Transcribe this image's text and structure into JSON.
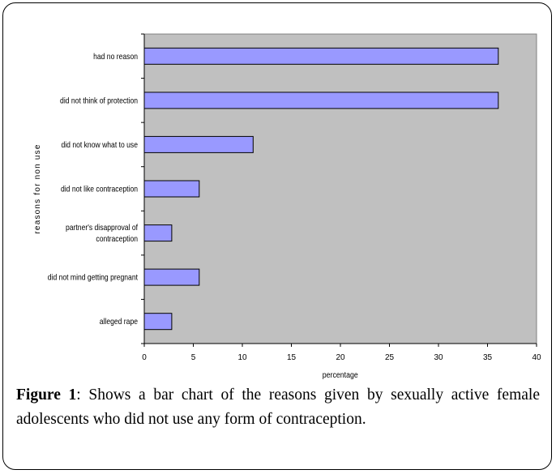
{
  "chart_data": {
    "type": "bar",
    "orientation": "horizontal",
    "categories": [
      "had no reason",
      "did not think of protection",
      "did not know what to use",
      "did not like contraception",
      "partner's disapproval of contraception",
      "did not mind getting pregnant",
      "alleged rape"
    ],
    "category_lines": [
      [
        "had no reason"
      ],
      [
        "did not think of protection"
      ],
      [
        "did not know what to use"
      ],
      [
        "did not like contraception"
      ],
      [
        "partner's disapproval of",
        "contraception"
      ],
      [
        "did not mind getting pregnant"
      ],
      [
        "alleged rape"
      ]
    ],
    "values": [
      36.1,
      36.1,
      11.1,
      5.6,
      2.8,
      5.6,
      2.8
    ],
    "xlabel": "percentage",
    "ylabel": "reasons for non use",
    "xlim": [
      0,
      40
    ],
    "xticks": [
      "0",
      "5",
      "10",
      "15",
      "20",
      "25",
      "30",
      "35",
      "40"
    ],
    "grid": false,
    "legend": "none",
    "colors": {
      "plot_background": "#c0c0c0",
      "bar_fill": "#9999ff",
      "bar_stroke": "#000000"
    }
  },
  "caption": {
    "label": "Figure 1",
    "text": ": Shows a bar chart of the reasons given by sexually active female adolescents who did not use any form of contraception."
  }
}
